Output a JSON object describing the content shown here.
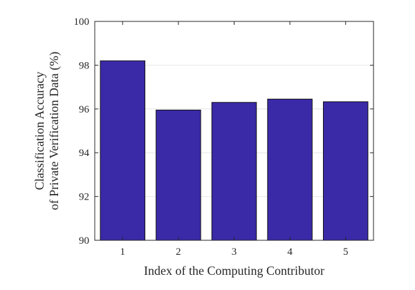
{
  "chart_data": {
    "type": "bar",
    "categories": [
      "1",
      "2",
      "3",
      "4",
      "5"
    ],
    "values": [
      98.2,
      95.95,
      96.3,
      96.45,
      96.33
    ],
    "title": "",
    "xlabel": "Index of the Computing Contributor",
    "ylabel_lines": [
      "Classification Accuracy",
      "of Private Verification Data (%)"
    ],
    "ylim": [
      90,
      100
    ],
    "yticks": [
      90,
      92,
      94,
      96,
      98,
      100
    ],
    "grid": "horizontal",
    "legend": "none",
    "colors": {
      "bar": "#3a2aa8",
      "bar_edge": "#111111",
      "grid": "#e6e6e6",
      "axis": "#262626"
    }
  }
}
